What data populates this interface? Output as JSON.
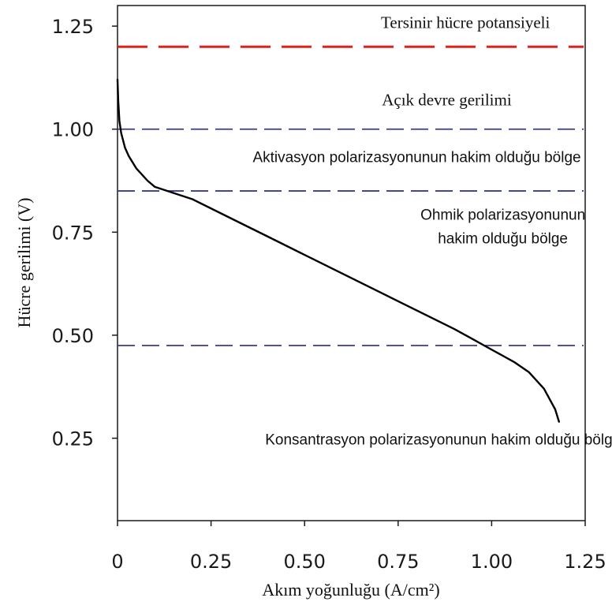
{
  "chart_data": {
    "type": "line",
    "xlabel": "Akım yoğunluğu (A/cm²)",
    "ylabel": "Hücre gerilimi (V)",
    "xlim": [
      0,
      1.25
    ],
    "ylim": [
      0.05,
      1.3
    ],
    "x_ticks": [
      "0",
      "0.25",
      "0.50",
      "0.75",
      "1.00",
      "1.25"
    ],
    "y_ticks": [
      "0.25",
      "0.50",
      "0.75",
      "1.00",
      "1.25"
    ],
    "grid": false,
    "series": [
      {
        "color": "#000000",
        "x": [
          0,
          0.002,
          0.005,
          0.01,
          0.02,
          0.03,
          0.05,
          0.08,
          0.1,
          0.14,
          0.2,
          0.3,
          0.4,
          0.5,
          0.6,
          0.7,
          0.8,
          0.9,
          0.95,
          0.98,
          1.02,
          1.06,
          1.1,
          1.14,
          1.17,
          1.18
        ],
        "y": [
          1.12,
          1.07,
          1.02,
          0.99,
          0.955,
          0.935,
          0.905,
          0.875,
          0.86,
          0.848,
          0.83,
          0.785,
          0.74,
          0.695,
          0.65,
          0.605,
          0.56,
          0.515,
          0.49,
          0.475,
          0.455,
          0.435,
          0.41,
          0.37,
          0.32,
          0.29
        ]
      }
    ],
    "reference_lines": [
      {
        "y": 1.2,
        "color": "#e0201a",
        "style": "long-dash"
      },
      {
        "y": 1.0,
        "color": "#3a3a8c",
        "style": "dash"
      },
      {
        "y": 0.85,
        "color": "#3a3a8c",
        "style": "dash"
      },
      {
        "y": 0.475,
        "color": "#3a3a8c",
        "style": "dash"
      }
    ],
    "annotations": [
      {
        "id": "reversible",
        "lines": [
          "Tersinir hücre potansiyeli"
        ],
        "font": "serif",
        "x": 0.93,
        "y": 1.245
      },
      {
        "id": "ocv",
        "lines": [
          "Açık devre gerilimi"
        ],
        "font": "serif",
        "x": 0.88,
        "y": 1.058
      },
      {
        "id": "activation",
        "lines": [
          "Aktivasyon polarizasyonunun hakim olduğu bölge"
        ],
        "font": "sans",
        "x": 0.8,
        "y": 0.92
      },
      {
        "id": "ohmic",
        "lines": [
          "Ohmik polarizasyonunun",
          "hakim olduğu bölge"
        ],
        "font": "sans",
        "x": 1.03,
        "y": 0.78
      },
      {
        "id": "concentration",
        "lines": [
          "Konsantrasyon polarizasyonunun hakim olduğu bölge"
        ],
        "font": "sans",
        "x": 0.87,
        "y": 0.235
      }
    ]
  }
}
